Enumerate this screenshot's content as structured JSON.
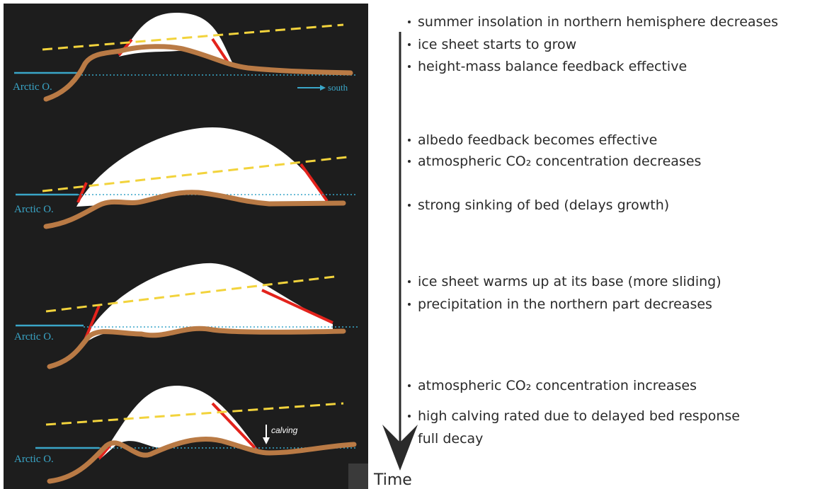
{
  "panels": [
    {
      "ocean_label": "Arctic O.",
      "direction_label": "south"
    },
    {
      "ocean_label": "Arctic O."
    },
    {
      "ocean_label": "Arctic O."
    },
    {
      "ocean_label": "Arctic O.",
      "calving_label": "calving"
    }
  ],
  "stages": [
    [
      "summer insolation in northern hemisphere decreases",
      "ice sheet starts to grow",
      "height-mass balance feedback effective"
    ],
    [
      "albedo feedback becomes effective",
      "atmospheric CO₂ concentration decreases",
      "strong sinking of bed (delays growth)"
    ],
    [
      "ice sheet warms up at its base (more sliding)",
      "precipitation in the northern part decreases"
    ],
    [
      "atmospheric CO₂ concentration increases"
    ],
    [
      "high calving rated due to delayed bed response",
      "full decay"
    ]
  ],
  "axis_label": "Time"
}
